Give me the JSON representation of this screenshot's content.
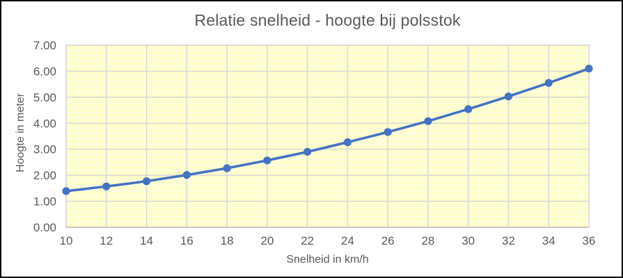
{
  "chart": {
    "title": "Relatie snelheid - hoogte bij polsstok",
    "xlabel": "Snelheid in km/h",
    "ylabel": "Hoogte in meter"
  },
  "chart_data": {
    "type": "line",
    "title": "Relatie snelheid - hoogte bij polsstok",
    "xlabel": "Snelheid in km/h",
    "ylabel": "Hoogte in meter",
    "x": [
      10,
      12,
      14,
      16,
      18,
      20,
      22,
      24,
      26,
      28,
      30,
      32,
      34,
      36
    ],
    "y": [
      1.39,
      1.57,
      1.77,
      2.01,
      2.27,
      2.57,
      2.9,
      3.27,
      3.66,
      4.08,
      4.54,
      5.03,
      5.55,
      6.1
    ],
    "xlim": [
      10,
      36
    ],
    "ylim": [
      0,
      7
    ],
    "x_tick_step": 2,
    "y_tick_step": 1,
    "y_minor_step": 0.2,
    "y_tick_decimals": 2,
    "grid": "major-and-minor-horizontal",
    "legend": "none",
    "marker": "circle",
    "colors": {
      "line": "#4472C4",
      "marker": "#4472C4",
      "plot_background": "#FFFFCC",
      "major_gridline": "#D9D9D9",
      "minor_gridline": "#FAFAED",
      "axis_line": "#BFBFBF",
      "text": "#595959",
      "frame_border": "#000000",
      "chart_background": "#FFFFFF"
    }
  }
}
